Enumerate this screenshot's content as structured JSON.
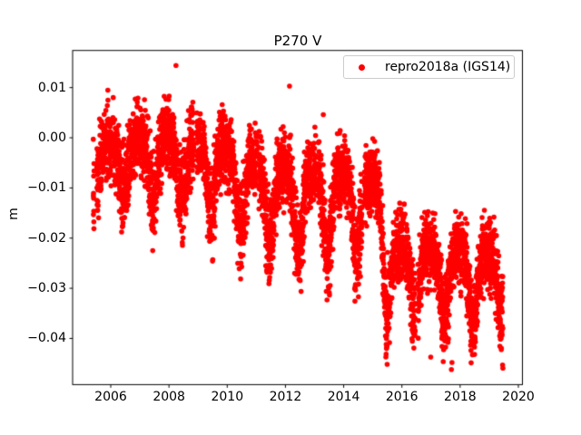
{
  "colors": {
    "background": "#ffffff",
    "marker": "#ff0000",
    "axis": "#000000",
    "text": "#000000",
    "legend_border": "#cccccc"
  },
  "chart_data": {
    "type": "scatter",
    "title": "P270 V",
    "xlabel": "",
    "ylabel": "m",
    "grid": false,
    "xlim": [
      2004.69,
      2020.14
    ],
    "ylim": [
      -0.0492,
      0.0174
    ],
    "xticks": {
      "values": [
        2006,
        2008,
        2010,
        2012,
        2014,
        2016,
        2018,
        2020
      ],
      "labels": [
        "2006",
        "2008",
        "2010",
        "2012",
        "2014",
        "2016",
        "2018",
        "2020"
      ]
    },
    "yticks": {
      "values": [
        0.01,
        0.0,
        -0.01,
        -0.02,
        -0.03,
        -0.04
      ],
      "labels": [
        "0.01",
        "0.00",
        "−0.01",
        "−0.02",
        "−0.03",
        "−0.04"
      ]
    },
    "legend": {
      "label": "repro2018a (IGS14)",
      "location": "upper right",
      "marker": "dot",
      "marker_color": "#ff0000"
    },
    "marker": {
      "shape": "circle",
      "color": "#ff0000",
      "radius_px": 2.8
    },
    "summary": "Daily GPS vertical position residuals (m) 2005.4–2019.5: annual oscillations with sharp downward seasonal dips, slow subsidence from about -0.005 m (2006) to -0.014 m (2015), a discrete offset down to about -0.027 m in mid-2015, then roughly flat near -0.027 m with dips to -0.042 m through 2019.",
    "series": [
      {
        "name": "repro2018a (IGS14)",
        "color": "#ff0000",
        "model": {
          "x_start": 2005.4,
          "x_end": 2019.47,
          "samples_per_year": 365,
          "seed": 7,
          "trend_breakpoints": [
            [
              2005.39,
              -0.0045
            ],
            [
              2007.0,
              -0.004
            ],
            [
              2008.5,
              -0.0045
            ],
            [
              2009.0,
              -0.005
            ],
            [
              2010.0,
              -0.0065
            ],
            [
              2011.0,
              -0.01
            ],
            [
              2012.0,
              -0.012
            ],
            [
              2014.0,
              -0.012
            ],
            [
              2015.35,
              -0.0145
            ],
            [
              2015.42,
              -0.026
            ],
            [
              2017.0,
              -0.0265
            ],
            [
              2018.0,
              -0.027
            ],
            [
              2019.47,
              -0.0275
            ]
          ],
          "seasonal_amplitude_breakpoints": [
            [
              2005.4,
              0.011
            ],
            [
              2007.0,
              0.0105
            ],
            [
              2009.0,
              0.0125
            ],
            [
              2010.0,
              0.013
            ],
            [
              2011.0,
              0.014
            ],
            [
              2012.0,
              0.016
            ],
            [
              2014.0,
              0.016
            ],
            [
              2015.3,
              0.015
            ],
            [
              2015.5,
              0.013
            ],
            [
              2019.47,
              0.013
            ]
          ],
          "seasonal_dip_phase": 0.45,
          "seasonal_dip_exponent": 2.5,
          "seasonal_dip_mean": 0.33,
          "noise_std": 0.0034,
          "dip_noise_scale": 0.25,
          "noise_clamp_sigma": 2.6,
          "gaps": [
            [
              2005.43,
              2005.52
            ],
            [
              2008.85,
              2008.95
            ],
            [
              2011.02,
              2011.08
            ],
            [
              2013.06,
              2013.12
            ],
            [
              2014.64,
              2014.71
            ],
            [
              2016.46,
              2016.54
            ]
          ]
        },
        "outliers": [
          [
            2005.9,
            0.0095
          ],
          [
            2008.24,
            0.0144
          ],
          [
            2012.14,
            0.0103
          ],
          [
            2013.3,
            0.0046
          ],
          [
            2015.47,
            -0.0419
          ],
          [
            2016.99,
            -0.0437
          ],
          [
            2017.7,
            -0.0462
          ],
          [
            2017.72,
            -0.0448
          ]
        ]
      }
    ]
  }
}
